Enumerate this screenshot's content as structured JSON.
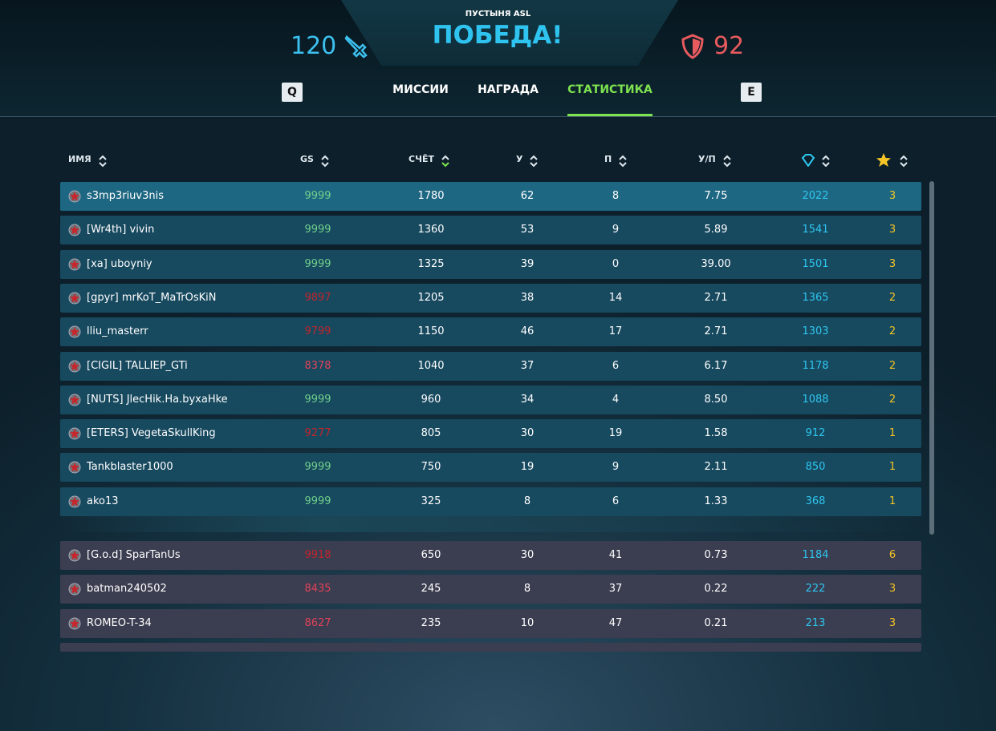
{
  "header": {
    "map": "ПУСТЫНЯ ASL",
    "result": "ПОБЕДА!",
    "score_left": "120",
    "score_right": "92"
  },
  "tabs": {
    "prev_key": "Q",
    "items": [
      "МИССИИ",
      "НАГРАДА",
      "СТАТИСТИКА"
    ],
    "active": 2,
    "next_key": "E"
  },
  "columns": [
    "ИМЯ",
    "GS",
    "СЧЁТ",
    "У",
    "П",
    "У/П"
  ],
  "teams": [
    {
      "color": "#17495f",
      "highlight_color": "#1e6782",
      "rows": [
        {
          "name": "s3mp3riuv3nis",
          "gs": "9999",
          "gs_color": "#6fd08a",
          "score": "1780",
          "kills": "62",
          "deaths": "8",
          "kd": "7.75",
          "gems": "2022",
          "stars": "3"
        },
        {
          "name": "[Wr4th] vivin",
          "gs": "9999",
          "gs_color": "#6fd08a",
          "score": "1360",
          "kills": "53",
          "deaths": "9",
          "kd": "5.89",
          "gems": "1541",
          "stars": "3"
        },
        {
          "name": "[xa] uboyniy",
          "gs": "9999",
          "gs_color": "#6fd08a",
          "score": "1325",
          "kills": "39",
          "deaths": "0",
          "kd": "39.00",
          "gems": "1501",
          "stars": "3"
        },
        {
          "name": "[gpyr] mrKoT_MaTrOsKiN",
          "gs": "9897",
          "gs_color": "#c0262d",
          "score": "1205",
          "kills": "38",
          "deaths": "14",
          "kd": "2.71",
          "gems": "1365",
          "stars": "2"
        },
        {
          "name": "lliu_masterr",
          "gs": "9799",
          "gs_color": "#c0262d",
          "score": "1150",
          "kills": "46",
          "deaths": "17",
          "kd": "2.71",
          "gems": "1303",
          "stars": "2"
        },
        {
          "name": "[CIGIL] TALLIEP_GTi",
          "gs": "8378",
          "gs_color": "#e0435a",
          "score": "1040",
          "kills": "37",
          "deaths": "6",
          "kd": "6.17",
          "gems": "1178",
          "stars": "2"
        },
        {
          "name": "[NUTS] JlecHik.Ha.byxaHke",
          "gs": "9999",
          "gs_color": "#6fd08a",
          "score": "960",
          "kills": "34",
          "deaths": "4",
          "kd": "8.50",
          "gems": "1088",
          "stars": "2"
        },
        {
          "name": "[ETERS] VegetaSkullKing",
          "gs": "9277",
          "gs_color": "#c0262d",
          "score": "805",
          "kills": "30",
          "deaths": "19",
          "kd": "1.58",
          "gems": "912",
          "stars": "1"
        },
        {
          "name": "Tankblaster1000",
          "gs": "9999",
          "gs_color": "#6fd08a",
          "score": "750",
          "kills": "19",
          "deaths": "9",
          "kd": "2.11",
          "gems": "850",
          "stars": "1"
        },
        {
          "name": "ako13",
          "gs": "9999",
          "gs_color": "#6fd08a",
          "score": "325",
          "kills": "8",
          "deaths": "6",
          "kd": "1.33",
          "gems": "368",
          "stars": "1"
        }
      ]
    },
    {
      "color": "#3b3d50",
      "rows": [
        {
          "name": "[G.o.d] SparTanUs",
          "gs": "9918",
          "gs_color": "#c0262d",
          "score": "650",
          "kills": "30",
          "deaths": "41",
          "kd": "0.73",
          "gems": "1184",
          "stars": "6"
        },
        {
          "name": "batman240502",
          "gs": "8435",
          "gs_color": "#e0435a",
          "score": "245",
          "kills": "8",
          "deaths": "37",
          "kd": "0.22",
          "gems": "222",
          "stars": "3"
        },
        {
          "name": "ROMEO-T-34",
          "gs": "8627",
          "gs_color": "#e0435a",
          "score": "235",
          "kills": "10",
          "deaths": "47",
          "kd": "0.21",
          "gems": "213",
          "stars": "3"
        }
      ]
    }
  ]
}
